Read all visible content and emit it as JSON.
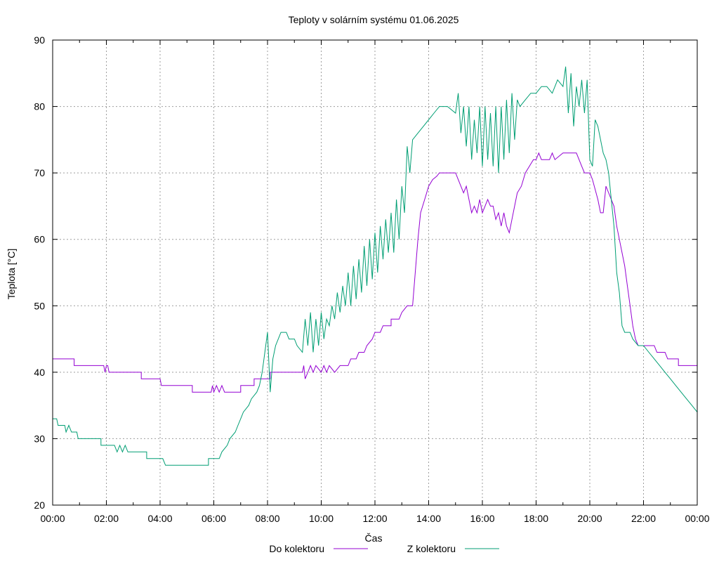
{
  "chart_data": {
    "type": "line",
    "title": "Teploty v solárním systému 01.06.2025",
    "xlabel": "Čas",
    "ylabel": "Teplota [°C]",
    "ylim": [
      20,
      90
    ],
    "xlim": [
      0,
      24
    ],
    "grid": true,
    "legend_placement": "bottom-center",
    "x_ticks": [
      "00:00",
      "02:00",
      "04:00",
      "06:00",
      "08:00",
      "10:00",
      "12:00",
      "14:00",
      "16:00",
      "18:00",
      "20:00",
      "22:00",
      "00:00"
    ],
    "y_ticks": [
      20,
      30,
      40,
      50,
      60,
      70,
      80,
      90
    ],
    "series": [
      {
        "name": "Do kolektoru",
        "color": "#9400d3",
        "points": [
          [
            0,
            42
          ],
          [
            0.8,
            42
          ],
          [
            0.8,
            41
          ],
          [
            1.9,
            41
          ],
          [
            1.95,
            40
          ],
          [
            2.0,
            41
          ],
          [
            2.05,
            41
          ],
          [
            2.1,
            40
          ],
          [
            3.3,
            40
          ],
          [
            3.3,
            39
          ],
          [
            4.0,
            39
          ],
          [
            4.05,
            38
          ],
          [
            5.2,
            38
          ],
          [
            5.2,
            37
          ],
          [
            5.9,
            37
          ],
          [
            5.95,
            38
          ],
          [
            6.0,
            37
          ],
          [
            6.1,
            38
          ],
          [
            6.2,
            37
          ],
          [
            6.3,
            38
          ],
          [
            6.4,
            37
          ],
          [
            7.0,
            37
          ],
          [
            7.0,
            38
          ],
          [
            7.5,
            38
          ],
          [
            7.5,
            39
          ],
          [
            8.1,
            39
          ],
          [
            8.1,
            40
          ],
          [
            9.3,
            40
          ],
          [
            9.35,
            41
          ],
          [
            9.4,
            39
          ],
          [
            9.5,
            40
          ],
          [
            9.6,
            41
          ],
          [
            9.7,
            40
          ],
          [
            9.8,
            41
          ],
          [
            10.0,
            40
          ],
          [
            10.1,
            41
          ],
          [
            10.2,
            40
          ],
          [
            10.3,
            41
          ],
          [
            10.5,
            40
          ],
          [
            10.7,
            41
          ],
          [
            11.0,
            41
          ],
          [
            11.1,
            42
          ],
          [
            11.3,
            42
          ],
          [
            11.4,
            43
          ],
          [
            11.6,
            43
          ],
          [
            11.7,
            44
          ],
          [
            11.9,
            45
          ],
          [
            12.0,
            46
          ],
          [
            12.2,
            46
          ],
          [
            12.3,
            47
          ],
          [
            12.6,
            47
          ],
          [
            12.6,
            48
          ],
          [
            12.9,
            48
          ],
          [
            13.0,
            49
          ],
          [
            13.2,
            50
          ],
          [
            13.4,
            50
          ],
          [
            13.5,
            55
          ],
          [
            13.6,
            60
          ],
          [
            13.7,
            64
          ],
          [
            13.85,
            66
          ],
          [
            14.0,
            68
          ],
          [
            14.15,
            69
          ],
          [
            14.3,
            69.5
          ],
          [
            14.4,
            70
          ],
          [
            14.5,
            70
          ],
          [
            15.0,
            70
          ],
          [
            15.1,
            69
          ],
          [
            15.2,
            68
          ],
          [
            15.3,
            67
          ],
          [
            15.4,
            68
          ],
          [
            15.5,
            66
          ],
          [
            15.6,
            64
          ],
          [
            15.7,
            65
          ],
          [
            15.8,
            64
          ],
          [
            15.9,
            66
          ],
          [
            16.0,
            64
          ],
          [
            16.1,
            65
          ],
          [
            16.2,
            66
          ],
          [
            16.3,
            65
          ],
          [
            16.4,
            65
          ],
          [
            16.5,
            63
          ],
          [
            16.6,
            64
          ],
          [
            16.7,
            62
          ],
          [
            16.8,
            64
          ],
          [
            16.9,
            62
          ],
          [
            17.0,
            61
          ],
          [
            17.1,
            63
          ],
          [
            17.2,
            65
          ],
          [
            17.3,
            67
          ],
          [
            17.45,
            68
          ],
          [
            17.6,
            70
          ],
          [
            17.75,
            71
          ],
          [
            17.9,
            72
          ],
          [
            18.0,
            72
          ],
          [
            18.1,
            73
          ],
          [
            18.2,
            72
          ],
          [
            18.5,
            72
          ],
          [
            18.6,
            73
          ],
          [
            18.7,
            72
          ],
          [
            19.0,
            73
          ],
          [
            19.5,
            73
          ],
          [
            19.6,
            72
          ],
          [
            19.7,
            71
          ],
          [
            19.8,
            70
          ],
          [
            20.0,
            70
          ],
          [
            20.1,
            69
          ],
          [
            20.3,
            66
          ],
          [
            20.4,
            64
          ],
          [
            20.5,
            64
          ],
          [
            20.6,
            68
          ],
          [
            20.7,
            67
          ],
          [
            20.9,
            65
          ],
          [
            21.0,
            62
          ],
          [
            21.1,
            60
          ],
          [
            21.2,
            58
          ],
          [
            21.3,
            56
          ],
          [
            21.4,
            53
          ],
          [
            21.5,
            50
          ],
          [
            21.6,
            47
          ],
          [
            21.7,
            45
          ],
          [
            21.8,
            44
          ],
          [
            22.2,
            44
          ],
          [
            22.4,
            44
          ],
          [
            22.5,
            43
          ],
          [
            22.8,
            43
          ],
          [
            22.9,
            42
          ],
          [
            23.3,
            42
          ],
          [
            23.3,
            41
          ],
          [
            23.5,
            41
          ],
          [
            24.0,
            41
          ],
          [
            24.0,
            40
          ],
          [
            24.0,
            40
          ]
        ]
      },
      {
        "name": "Z kolektoru",
        "color": "#009e73",
        "points": [
          [
            0,
            33
          ],
          [
            0.15,
            33
          ],
          [
            0.2,
            32
          ],
          [
            0.45,
            32
          ],
          [
            0.5,
            31
          ],
          [
            0.6,
            32
          ],
          [
            0.7,
            31
          ],
          [
            0.9,
            31
          ],
          [
            0.95,
            30
          ],
          [
            1.8,
            30
          ],
          [
            1.8,
            29
          ],
          [
            2.3,
            29
          ],
          [
            2.4,
            28
          ],
          [
            2.5,
            29
          ],
          [
            2.6,
            28
          ],
          [
            2.7,
            29
          ],
          [
            2.8,
            28
          ],
          [
            3.5,
            28
          ],
          [
            3.5,
            27
          ],
          [
            4.1,
            27
          ],
          [
            4.2,
            26
          ],
          [
            5.8,
            26
          ],
          [
            5.8,
            27
          ],
          [
            6.2,
            27
          ],
          [
            6.3,
            28
          ],
          [
            6.5,
            29
          ],
          [
            6.6,
            30
          ],
          [
            6.8,
            31
          ],
          [
            6.9,
            32
          ],
          [
            7.0,
            33
          ],
          [
            7.1,
            34
          ],
          [
            7.3,
            35
          ],
          [
            7.4,
            36
          ],
          [
            7.6,
            37
          ],
          [
            7.7,
            38
          ],
          [
            7.8,
            40
          ],
          [
            7.9,
            43
          ],
          [
            8.0,
            46
          ],
          [
            8.1,
            37
          ],
          [
            8.2,
            42
          ],
          [
            8.3,
            44
          ],
          [
            8.5,
            46
          ],
          [
            8.7,
            46
          ],
          [
            8.8,
            45
          ],
          [
            9.0,
            45
          ],
          [
            9.1,
            44
          ],
          [
            9.3,
            43
          ],
          [
            9.4,
            48
          ],
          [
            9.5,
            44
          ],
          [
            9.6,
            49
          ],
          [
            9.7,
            43
          ],
          [
            9.8,
            48
          ],
          [
            9.9,
            44
          ],
          [
            10.0,
            49
          ],
          [
            10.1,
            45
          ],
          [
            10.2,
            48
          ],
          [
            10.3,
            47
          ],
          [
            10.4,
            50
          ],
          [
            10.5,
            48
          ],
          [
            10.6,
            52
          ],
          [
            10.7,
            49
          ],
          [
            10.8,
            53
          ],
          [
            10.9,
            50
          ],
          [
            11.0,
            55
          ],
          [
            11.1,
            50
          ],
          [
            11.2,
            56
          ],
          [
            11.3,
            51
          ],
          [
            11.4,
            57
          ],
          [
            11.5,
            52
          ],
          [
            11.6,
            59
          ],
          [
            11.7,
            53
          ],
          [
            11.8,
            60
          ],
          [
            11.9,
            54
          ],
          [
            12.0,
            61
          ],
          [
            12.1,
            55
          ],
          [
            12.2,
            62
          ],
          [
            12.3,
            57
          ],
          [
            12.4,
            63
          ],
          [
            12.5,
            58
          ],
          [
            12.6,
            64
          ],
          [
            12.7,
            58
          ],
          [
            12.8,
            66
          ],
          [
            12.9,
            60
          ],
          [
            13.0,
            68
          ],
          [
            13.1,
            64
          ],
          [
            13.2,
            74
          ],
          [
            13.3,
            70
          ],
          [
            13.4,
            75
          ],
          [
            13.6,
            76
          ],
          [
            13.8,
            77
          ],
          [
            14.0,
            78
          ],
          [
            14.2,
            79
          ],
          [
            14.4,
            80
          ],
          [
            14.7,
            80
          ],
          [
            15.0,
            79
          ],
          [
            15.1,
            82
          ],
          [
            15.2,
            76
          ],
          [
            15.3,
            80
          ],
          [
            15.4,
            74
          ],
          [
            15.5,
            80
          ],
          [
            15.6,
            72
          ],
          [
            15.7,
            78
          ],
          [
            15.8,
            73
          ],
          [
            15.9,
            80
          ],
          [
            16.0,
            71
          ],
          [
            16.1,
            80
          ],
          [
            16.2,
            72
          ],
          [
            16.3,
            79
          ],
          [
            16.4,
            71
          ],
          [
            16.5,
            80
          ],
          [
            16.6,
            70
          ],
          [
            16.7,
            80
          ],
          [
            16.8,
            72
          ],
          [
            16.9,
            81
          ],
          [
            17.0,
            73
          ],
          [
            17.1,
            82
          ],
          [
            17.2,
            75
          ],
          [
            17.3,
            81
          ],
          [
            17.4,
            80
          ],
          [
            17.6,
            81
          ],
          [
            17.8,
            82
          ],
          [
            18.0,
            82
          ],
          [
            18.2,
            83
          ],
          [
            18.4,
            83
          ],
          [
            18.6,
            82
          ],
          [
            18.8,
            84
          ],
          [
            19.0,
            83
          ],
          [
            19.1,
            86
          ],
          [
            19.2,
            79
          ],
          [
            19.3,
            85
          ],
          [
            19.4,
            77
          ],
          [
            19.5,
            83
          ],
          [
            19.6,
            80
          ],
          [
            19.7,
            84
          ],
          [
            19.8,
            79
          ],
          [
            19.9,
            84
          ],
          [
            20.0,
            72
          ],
          [
            20.1,
            71
          ],
          [
            20.2,
            78
          ],
          [
            20.3,
            77
          ],
          [
            20.5,
            73
          ],
          [
            20.6,
            72
          ],
          [
            20.7,
            70
          ],
          [
            20.8,
            66
          ],
          [
            20.9,
            62
          ],
          [
            21.0,
            55
          ],
          [
            21.1,
            52
          ],
          [
            21.2,
            47
          ],
          [
            21.3,
            46
          ],
          [
            21.5,
            46
          ],
          [
            21.6,
            45
          ],
          [
            21.8,
            44
          ],
          [
            22.0,
            44
          ],
          [
            22.2,
            43
          ],
          [
            22.4,
            42
          ],
          [
            22.6,
            41
          ],
          [
            22.8,
            40
          ],
          [
            23.0,
            39
          ],
          [
            23.2,
            38
          ],
          [
            23.4,
            37
          ],
          [
            23.6,
            36
          ],
          [
            23.8,
            35
          ],
          [
            24.0,
            34
          ],
          [
            24.0,
            33.5
          ]
        ]
      }
    ]
  }
}
